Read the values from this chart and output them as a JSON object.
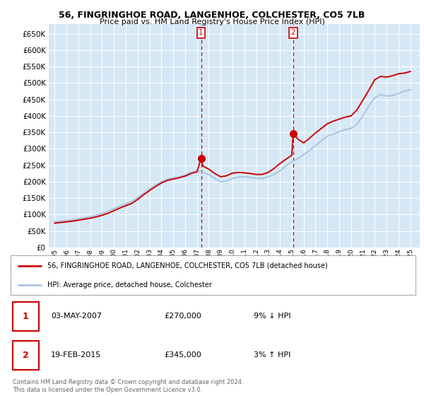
{
  "title1": "56, FINGRINGHOE ROAD, LANGENHOE, COLCHESTER, CO5 7LB",
  "title2": "Price paid vs. HM Land Registry's House Price Index (HPI)",
  "legend_label1": "56, FINGRINGHOE ROAD, LANGENHOE, COLCHESTER, CO5 7LB (detached house)",
  "legend_label2": "HPI: Average price, detached house, Colchester",
  "transaction1_date": "03-MAY-2007",
  "transaction1_price": "£270,000",
  "transaction1_hpi": "9% ↓ HPI",
  "transaction2_date": "19-FEB-2015",
  "transaction2_price": "£345,000",
  "transaction2_hpi": "3% ↑ HPI",
  "footer": "Contains HM Land Registry data © Crown copyright and database right 2024.\nThis data is licensed under the Open Government Licence v3.0.",
  "line_color_house": "#cc0000",
  "line_color_hpi": "#aac4e0",
  "marker_color": "#cc0000",
  "vline_color": "#cc0000",
  "grid_color": "#ffffff",
  "plot_bg": "#d6e8f5",
  "ylim": [
    0,
    680000
  ],
  "yticks": [
    0,
    50000,
    100000,
    150000,
    200000,
    250000,
    300000,
    350000,
    400000,
    450000,
    500000,
    550000,
    600000,
    650000
  ],
  "hpi_years": [
    1995.0,
    1995.5,
    1996.0,
    1996.5,
    1997.0,
    1997.5,
    1998.0,
    1998.5,
    1999.0,
    1999.5,
    2000.0,
    2000.5,
    2001.0,
    2001.5,
    2002.0,
    2002.5,
    2003.0,
    2003.5,
    2004.0,
    2004.5,
    2005.0,
    2005.5,
    2006.0,
    2006.5,
    2007.0,
    2007.5,
    2008.0,
    2008.5,
    2009.0,
    2009.5,
    2010.0,
    2010.5,
    2011.0,
    2011.5,
    2012.0,
    2012.5,
    2013.0,
    2013.5,
    2014.0,
    2014.5,
    2015.0,
    2015.5,
    2016.0,
    2016.5,
    2017.0,
    2017.5,
    2018.0,
    2018.5,
    2019.0,
    2019.5,
    2020.0,
    2020.5,
    2021.0,
    2021.5,
    2022.0,
    2022.5,
    2023.0,
    2023.5,
    2024.0,
    2024.5,
    2025.0
  ],
  "hpi_values": [
    78000,
    80000,
    82000,
    84000,
    87000,
    90000,
    94000,
    98000,
    104000,
    110000,
    118000,
    126000,
    133000,
    140000,
    152000,
    165000,
    178000,
    190000,
    200000,
    208000,
    212000,
    215000,
    220000,
    228000,
    232000,
    228000,
    222000,
    210000,
    200000,
    202000,
    210000,
    214000,
    215000,
    213000,
    210000,
    210000,
    214000,
    222000,
    233000,
    248000,
    260000,
    270000,
    282000,
    295000,
    310000,
    325000,
    338000,
    345000,
    352000,
    358000,
    362000,
    375000,
    400000,
    430000,
    455000,
    465000,
    460000,
    462000,
    468000,
    475000,
    480000
  ],
  "house_years": [
    1995.0,
    1995.5,
    1996.0,
    1996.5,
    1997.0,
    1997.5,
    1998.0,
    1998.5,
    1999.0,
    1999.5,
    2000.0,
    2000.5,
    2001.0,
    2001.5,
    2002.0,
    2002.5,
    2003.0,
    2003.5,
    2004.0,
    2004.5,
    2005.0,
    2005.5,
    2006.0,
    2006.5,
    2007.0,
    2007.35,
    2007.5,
    2008.0,
    2008.5,
    2009.0,
    2009.5,
    2010.0,
    2010.5,
    2011.0,
    2011.5,
    2012.0,
    2012.5,
    2013.0,
    2013.5,
    2014.0,
    2014.5,
    2015.0,
    2015.12,
    2015.5,
    2016.0,
    2016.5,
    2017.0,
    2017.5,
    2018.0,
    2018.5,
    2019.0,
    2019.5,
    2020.0,
    2020.5,
    2021.0,
    2021.5,
    2022.0,
    2022.5,
    2023.0,
    2023.5,
    2024.0,
    2024.5,
    2025.0
  ],
  "house_values": [
    74000,
    76000,
    78000,
    80000,
    83000,
    86000,
    89000,
    93000,
    98000,
    104000,
    112000,
    120000,
    127000,
    134000,
    146000,
    160000,
    173000,
    185000,
    196000,
    204000,
    208000,
    212000,
    217000,
    225000,
    230000,
    270000,
    248000,
    238000,
    225000,
    215000,
    218000,
    226000,
    228000,
    227000,
    225000,
    222000,
    222000,
    228000,
    240000,
    255000,
    268000,
    280000,
    345000,
    330000,
    318000,
    332000,
    348000,
    362000,
    376000,
    384000,
    390000,
    396000,
    400000,
    418000,
    448000,
    478000,
    510000,
    520000,
    518000,
    522000,
    528000,
    530000,
    535000
  ],
  "transaction1_year": 2007.35,
  "transaction2_year": 2015.12,
  "transaction1_value": 270000,
  "transaction2_value": 345000,
  "xlim": [
    1994.5,
    2025.8
  ],
  "xticks": [
    1995,
    1996,
    1997,
    1998,
    1999,
    2000,
    2001,
    2002,
    2003,
    2004,
    2005,
    2006,
    2007,
    2008,
    2009,
    2010,
    2011,
    2012,
    2013,
    2014,
    2015,
    2016,
    2017,
    2018,
    2019,
    2020,
    2021,
    2022,
    2023,
    2024,
    2025
  ]
}
